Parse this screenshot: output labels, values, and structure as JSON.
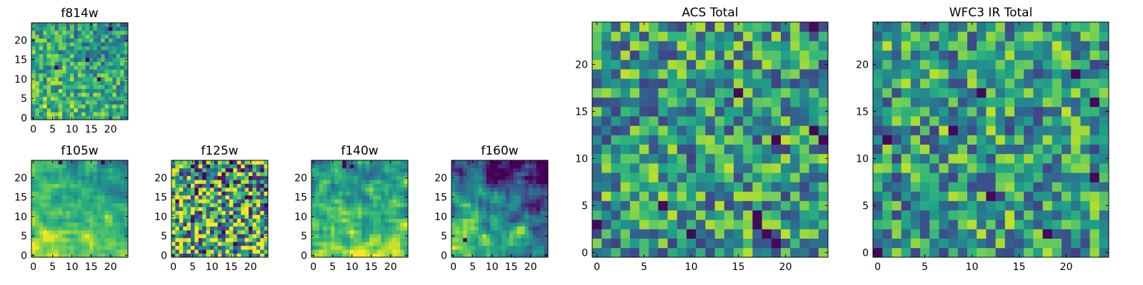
{
  "chart_data": [
    {
      "id": "f814w",
      "type": "heatmap",
      "title": "f814w",
      "grid_size": 25,
      "xlim": [
        0,
        24
      ],
      "ylim": [
        0,
        24
      ],
      "xticks": [
        0,
        5,
        10,
        15,
        20
      ],
      "yticks": [
        0,
        5,
        10,
        15,
        20
      ],
      "colormap": "viridis",
      "pattern": "noisy, brighter toward bottom-left",
      "seed": 11
    },
    {
      "id": "f105w",
      "type": "heatmap",
      "title": "f105w",
      "grid_size": 25,
      "xlim": [
        0,
        24
      ],
      "ylim": [
        0,
        24
      ],
      "xticks": [
        0,
        5,
        10,
        15,
        20
      ],
      "yticks": [
        0,
        5,
        10,
        15,
        20
      ],
      "colormap": "viridis",
      "pattern": "smooth, brighter toward bottom-left",
      "seed": 23
    },
    {
      "id": "f125w",
      "type": "heatmap",
      "title": "f125w",
      "grid_size": 25,
      "xlim": [
        0,
        24
      ],
      "ylim": [
        0,
        24
      ],
      "xticks": [
        0,
        5,
        10,
        15,
        20
      ],
      "yticks": [
        0,
        5,
        10,
        15,
        20
      ],
      "colormap": "viridis",
      "pattern": "patchy with dark spots",
      "seed": 37
    },
    {
      "id": "f140w",
      "type": "heatmap",
      "title": "f140w",
      "grid_size": 25,
      "xlim": [
        0,
        24
      ],
      "ylim": [
        0,
        24
      ],
      "xticks": [
        0,
        5,
        10,
        15,
        20
      ],
      "yticks": [
        0,
        5,
        10,
        15,
        20
      ],
      "colormap": "viridis",
      "pattern": "smooth, darker at top",
      "seed": 41
    },
    {
      "id": "f160w",
      "type": "heatmap",
      "title": "f160w",
      "grid_size": 25,
      "xlim": [
        0,
        24
      ],
      "ylim": [
        0,
        24
      ],
      "xticks": [
        0,
        5,
        10,
        15,
        20
      ],
      "yticks": [
        0,
        5,
        10,
        15,
        20
      ],
      "colormap": "viridis",
      "pattern": "darker at top, bright bottom-left with one dark pixel",
      "seed": 53
    },
    {
      "id": "acs",
      "type": "heatmap",
      "title": "ACS Total",
      "grid_size": 25,
      "xlim": [
        0,
        24
      ],
      "ylim": [
        0,
        24
      ],
      "xticks": [
        0,
        5,
        10,
        15,
        20
      ],
      "yticks": [
        0,
        5,
        10,
        15,
        20
      ],
      "colormap": "viridis",
      "pattern": "pixelated noise with scattered dark pixels",
      "seed": 67
    },
    {
      "id": "wfc3",
      "type": "heatmap",
      "title": "WFC3 IR Total",
      "grid_size": 25,
      "xlim": [
        0,
        24
      ],
      "ylim": [
        0,
        24
      ],
      "xticks": [
        0,
        5,
        10,
        15,
        20
      ],
      "yticks": [
        0,
        5,
        10,
        15,
        20
      ],
      "colormap": "viridis",
      "pattern": "pixelated noise with scattered dark pixels",
      "seed": 79
    }
  ]
}
